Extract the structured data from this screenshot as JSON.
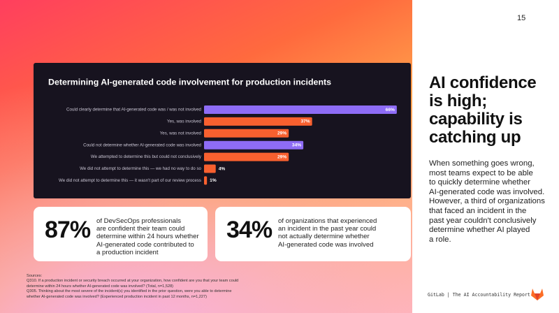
{
  "page_number": "15",
  "chart_data": {
    "type": "bar",
    "title": "Determining AI-generated code involvement for production incidents",
    "categories": [
      "Could clearly determine that AI-generated code was / was not involved",
      "Yes, was involved",
      "Yes, was not involved",
      "Could not determine whether AI-generated code was involved",
      "We attempted to determine this but could not conclusively",
      "We did not attempt to determine this — we had no way to do so",
      "We did not attempt to determine this — it wasn't part of our review process"
    ],
    "values": [
      66,
      37,
      29,
      34,
      29,
      4,
      1
    ],
    "value_labels": [
      "66%",
      "37%",
      "29%",
      "34%",
      "29%",
      "4%",
      "1%"
    ],
    "colors": [
      "#8e6cf6",
      "#f8602f",
      "#f8602f",
      "#8e6cf6",
      "#f8602f",
      "#f8602f",
      "#f8602f"
    ]
  },
  "stats": [
    {
      "value": "87%",
      "lines": [
        "of DevSecOps professionals",
        "are confident their team could",
        "determine within 24 hours whether",
        "AI-generated code contributed to",
        "a production incident"
      ]
    },
    {
      "value": "34%",
      "lines": [
        "of organizations that experienced",
        "an incident in the past year could",
        "not actually determine whether",
        "AI-generated code was involved"
      ]
    }
  ],
  "heading": {
    "lines": [
      "AI confidence",
      "is high;",
      "capability is",
      "catching up"
    ]
  },
  "body": {
    "lines": [
      "When something goes wrong,",
      "most teams expect to be able",
      "to quickly determine whether",
      "AI-generated code was involved.",
      "However, a third of organizations",
      "that faced an incident in the",
      "past year couldn't conclusively",
      "determine whether AI played",
      "a role."
    ]
  },
  "sources": {
    "lines": [
      "Sources:",
      "Q310. If a production incident or security breach occurred at your organization, how confident are you that your team could",
      "determine within 24 hours whether AI-generated code was involved? (Total, n=1,528)",
      "Q305. Thinking about the most severe of the incident(s) you identified in the prior question, were you able to determine",
      "whether AI-generated code was involved? (Experienced production incident in past 12 months, n=1,227)"
    ]
  },
  "footer": "GitLab | The AI Accountability Report"
}
